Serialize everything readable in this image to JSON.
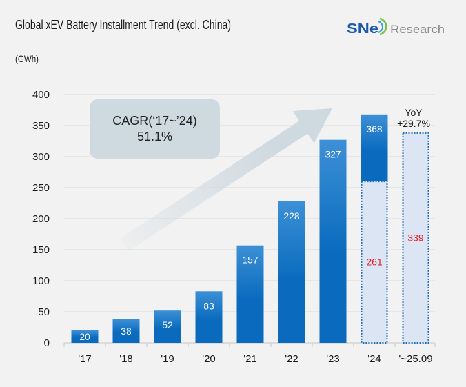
{
  "header": {
    "title": "Global xEV Battery Installment Trend (excl. China)",
    "logo": {
      "mark": "SNe",
      "text": "Research"
    }
  },
  "colors": {
    "background": "#f2f2f2",
    "bar_top": "#3d90d6",
    "bar_bottom": "#0a6bbe",
    "dotted_fill": "#dbe5f4",
    "dotted_stroke": "#1f6db9",
    "dotted_label": "#e31d25",
    "callout_fill": "#cfd9e0",
    "arrow": "#cfd9e0",
    "logo_blue": "#1b5aab",
    "logo_green": "#7cc04a",
    "logo_cyan": "#3aa0d8",
    "logo_gray": "#8a8a8a"
  },
  "chart_data": {
    "type": "bar",
    "title": "Global xEV Battery Installment Trend (excl. China)",
    "xlabel": "",
    "ylabel": "(GWh)",
    "ylim": [
      0,
      400
    ],
    "yticks": [
      0,
      50,
      100,
      150,
      200,
      250,
      300,
      350,
      400
    ],
    "grid": true,
    "legend": "none",
    "categories": [
      "'17",
      "'18",
      "'19",
      "'20",
      "'21",
      "'22",
      "'23",
      "'24",
      "'~25.09"
    ],
    "series": [
      {
        "name": "solid-bars",
        "values": [
          20,
          38,
          52,
          83,
          157,
          228,
          327,
          368,
          null
        ]
      },
      {
        "name": "dotted-bars",
        "values": [
          null,
          null,
          null,
          null,
          null,
          null,
          null,
          261,
          339
        ]
      }
    ],
    "annotations": {
      "cagr": {
        "label": "CAGR(‘17~’24)",
        "value": "51.1%"
      },
      "yoy": {
        "label": "YoY",
        "value": "+29.7%"
      }
    }
  }
}
